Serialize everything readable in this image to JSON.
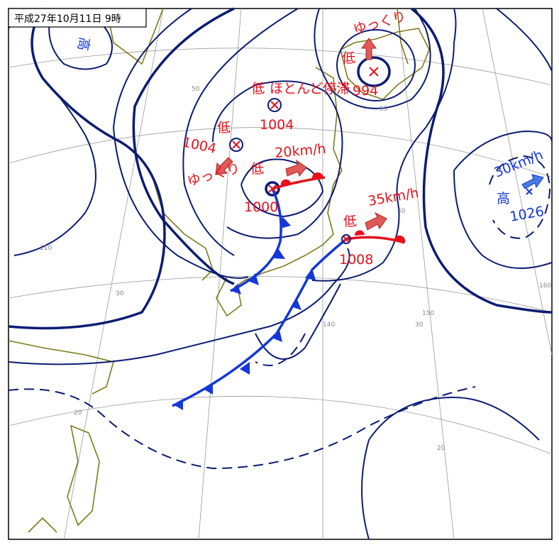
{
  "header": {
    "title": "平成27年10月11日 9時"
  },
  "systems": [
    {
      "kind": "低",
      "pressure": "994",
      "motion": "ゆっくり"
    },
    {
      "kind": "低",
      "pressure": "1004",
      "motion": "ほとんど停滞"
    },
    {
      "kind": "低",
      "pressure": "1004",
      "motion": "ゆっくり"
    },
    {
      "kind": "低",
      "pressure": "1000",
      "motion": "20km/h"
    },
    {
      "kind": "低",
      "pressure": "1008",
      "motion": "35km/h"
    },
    {
      "kind": "高",
      "pressure": "1026",
      "motion": "30km/h"
    },
    {
      "kind": "高"
    }
  ],
  "grid_labels": [
    "50",
    "50",
    "40",
    "110",
    "30",
    "140",
    "150",
    "30",
    "160",
    "20",
    "20"
  ]
}
